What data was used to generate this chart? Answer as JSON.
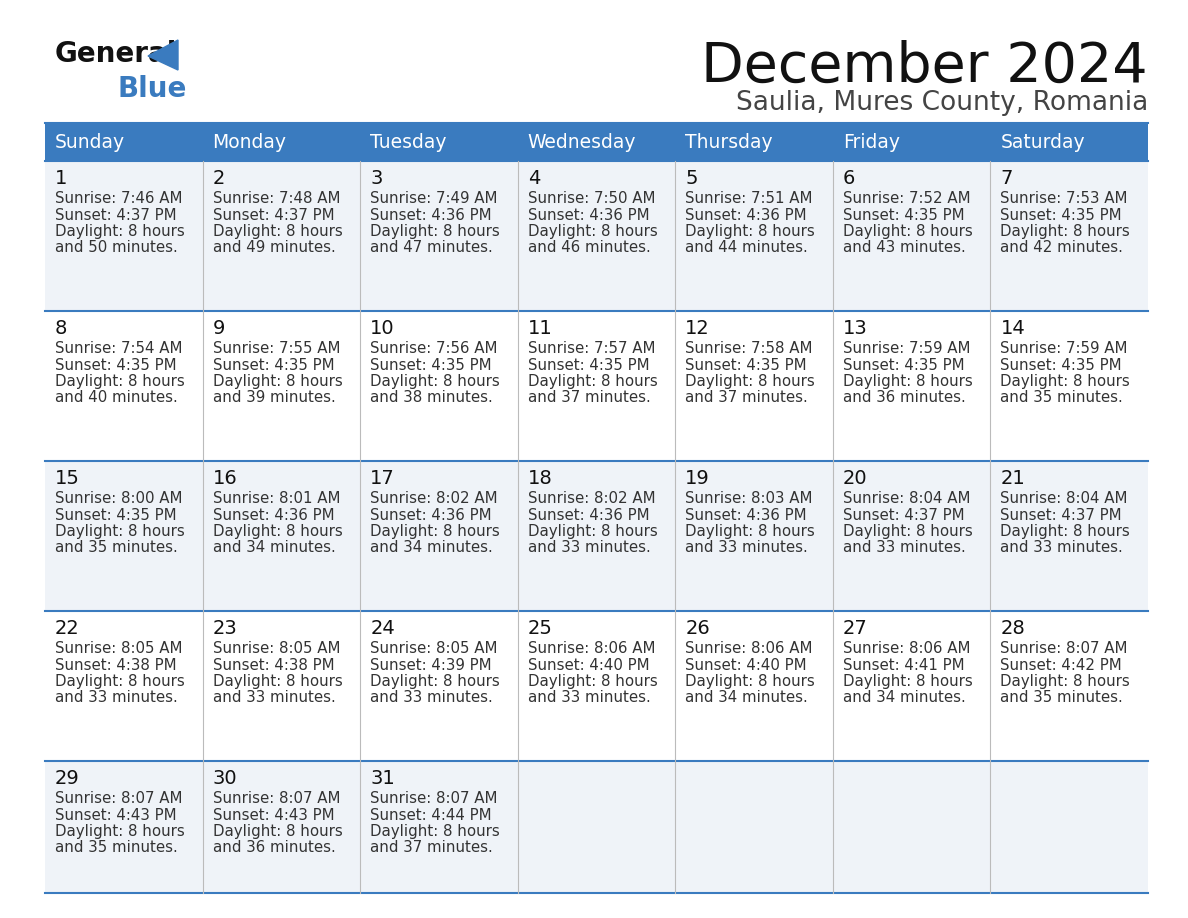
{
  "title": "December 2024",
  "subtitle": "Saulia, Mures County, Romania",
  "days_of_week": [
    "Sunday",
    "Monday",
    "Tuesday",
    "Wednesday",
    "Thursday",
    "Friday",
    "Saturday"
  ],
  "header_bg_color": "#3a7bbf",
  "header_text_color": "#ffffff",
  "row_bg_even": "#eff3f8",
  "row_bg_odd": "#ffffff",
  "separator_color": "#3a7bbf",
  "cell_text_color": "#333333",
  "day_num_color": "#111111",
  "calendar_data": [
    [
      {
        "day": 1,
        "sunrise": "7:46 AM",
        "sunset": "4:37 PM",
        "daylight_h": "8 hours",
        "daylight_m": "50 minutes"
      },
      {
        "day": 2,
        "sunrise": "7:48 AM",
        "sunset": "4:37 PM",
        "daylight_h": "8 hours",
        "daylight_m": "49 minutes"
      },
      {
        "day": 3,
        "sunrise": "7:49 AM",
        "sunset": "4:36 PM",
        "daylight_h": "8 hours",
        "daylight_m": "47 minutes"
      },
      {
        "day": 4,
        "sunrise": "7:50 AM",
        "sunset": "4:36 PM",
        "daylight_h": "8 hours",
        "daylight_m": "46 minutes"
      },
      {
        "day": 5,
        "sunrise": "7:51 AM",
        "sunset": "4:36 PM",
        "daylight_h": "8 hours",
        "daylight_m": "44 minutes"
      },
      {
        "day": 6,
        "sunrise": "7:52 AM",
        "sunset": "4:35 PM",
        "daylight_h": "8 hours",
        "daylight_m": "43 minutes"
      },
      {
        "day": 7,
        "sunrise": "7:53 AM",
        "sunset": "4:35 PM",
        "daylight_h": "8 hours",
        "daylight_m": "42 minutes"
      }
    ],
    [
      {
        "day": 8,
        "sunrise": "7:54 AM",
        "sunset": "4:35 PM",
        "daylight_h": "8 hours",
        "daylight_m": "40 minutes"
      },
      {
        "day": 9,
        "sunrise": "7:55 AM",
        "sunset": "4:35 PM",
        "daylight_h": "8 hours",
        "daylight_m": "39 minutes"
      },
      {
        "day": 10,
        "sunrise": "7:56 AM",
        "sunset": "4:35 PM",
        "daylight_h": "8 hours",
        "daylight_m": "38 minutes"
      },
      {
        "day": 11,
        "sunrise": "7:57 AM",
        "sunset": "4:35 PM",
        "daylight_h": "8 hours",
        "daylight_m": "37 minutes"
      },
      {
        "day": 12,
        "sunrise": "7:58 AM",
        "sunset": "4:35 PM",
        "daylight_h": "8 hours",
        "daylight_m": "37 minutes"
      },
      {
        "day": 13,
        "sunrise": "7:59 AM",
        "sunset": "4:35 PM",
        "daylight_h": "8 hours",
        "daylight_m": "36 minutes"
      },
      {
        "day": 14,
        "sunrise": "7:59 AM",
        "sunset": "4:35 PM",
        "daylight_h": "8 hours",
        "daylight_m": "35 minutes"
      }
    ],
    [
      {
        "day": 15,
        "sunrise": "8:00 AM",
        "sunset": "4:35 PM",
        "daylight_h": "8 hours",
        "daylight_m": "35 minutes"
      },
      {
        "day": 16,
        "sunrise": "8:01 AM",
        "sunset": "4:36 PM",
        "daylight_h": "8 hours",
        "daylight_m": "34 minutes"
      },
      {
        "day": 17,
        "sunrise": "8:02 AM",
        "sunset": "4:36 PM",
        "daylight_h": "8 hours",
        "daylight_m": "34 minutes"
      },
      {
        "day": 18,
        "sunrise": "8:02 AM",
        "sunset": "4:36 PM",
        "daylight_h": "8 hours",
        "daylight_m": "33 minutes"
      },
      {
        "day": 19,
        "sunrise": "8:03 AM",
        "sunset": "4:36 PM",
        "daylight_h": "8 hours",
        "daylight_m": "33 minutes"
      },
      {
        "day": 20,
        "sunrise": "8:04 AM",
        "sunset": "4:37 PM",
        "daylight_h": "8 hours",
        "daylight_m": "33 minutes"
      },
      {
        "day": 21,
        "sunrise": "8:04 AM",
        "sunset": "4:37 PM",
        "daylight_h": "8 hours",
        "daylight_m": "33 minutes"
      }
    ],
    [
      {
        "day": 22,
        "sunrise": "8:05 AM",
        "sunset": "4:38 PM",
        "daylight_h": "8 hours",
        "daylight_m": "33 minutes"
      },
      {
        "day": 23,
        "sunrise": "8:05 AM",
        "sunset": "4:38 PM",
        "daylight_h": "8 hours",
        "daylight_m": "33 minutes"
      },
      {
        "day": 24,
        "sunrise": "8:05 AM",
        "sunset": "4:39 PM",
        "daylight_h": "8 hours",
        "daylight_m": "33 minutes"
      },
      {
        "day": 25,
        "sunrise": "8:06 AM",
        "sunset": "4:40 PM",
        "daylight_h": "8 hours",
        "daylight_m": "33 minutes"
      },
      {
        "day": 26,
        "sunrise": "8:06 AM",
        "sunset": "4:40 PM",
        "daylight_h": "8 hours",
        "daylight_m": "34 minutes"
      },
      {
        "day": 27,
        "sunrise": "8:06 AM",
        "sunset": "4:41 PM",
        "daylight_h": "8 hours",
        "daylight_m": "34 minutes"
      },
      {
        "day": 28,
        "sunrise": "8:07 AM",
        "sunset": "4:42 PM",
        "daylight_h": "8 hours",
        "daylight_m": "35 minutes"
      }
    ],
    [
      {
        "day": 29,
        "sunrise": "8:07 AM",
        "sunset": "4:43 PM",
        "daylight_h": "8 hours",
        "daylight_m": "35 minutes"
      },
      {
        "day": 30,
        "sunrise": "8:07 AM",
        "sunset": "4:43 PM",
        "daylight_h": "8 hours",
        "daylight_m": "36 minutes"
      },
      {
        "day": 31,
        "sunrise": "8:07 AM",
        "sunset": "4:44 PM",
        "daylight_h": "8 hours",
        "daylight_m": "37 minutes"
      },
      null,
      null,
      null,
      null
    ]
  ]
}
